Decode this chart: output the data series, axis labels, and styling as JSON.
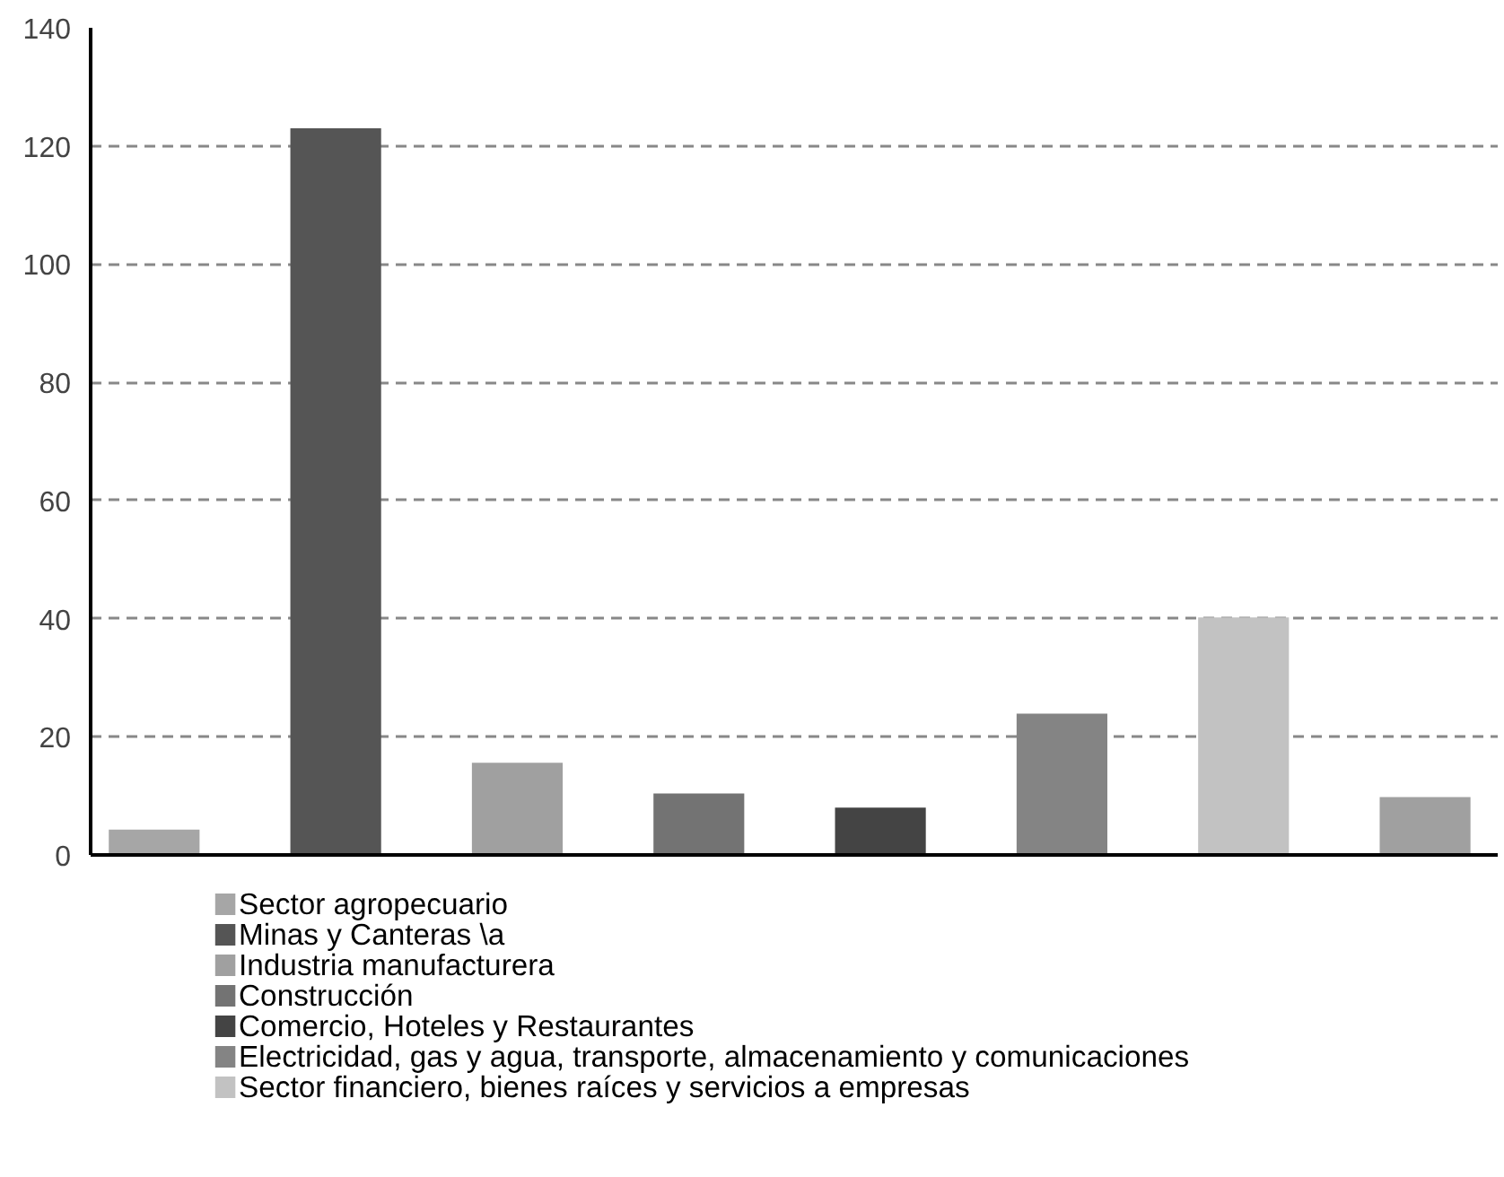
{
  "chart_data": {
    "type": "bar",
    "categories": [
      null,
      null,
      null,
      null,
      null,
      null,
      null,
      null
    ],
    "series": [
      {
        "name": "Sector agropecuario",
        "color": "#a6a6a6",
        "values": [
          4.3,
          null,
          null,
          null,
          null,
          null,
          null,
          null
        ]
      },
      {
        "name": "Minas y Canteras \\a",
        "color": "#555555",
        "values": [
          null,
          123,
          null,
          null,
          null,
          null,
          null,
          null
        ]
      },
      {
        "name": "Industria manufacturera",
        "color": "#a0a0a0",
        "values": [
          null,
          null,
          15.6,
          null,
          null,
          null,
          null,
          null
        ]
      },
      {
        "name": "Construcción",
        "color": "#737373",
        "values": [
          null,
          null,
          null,
          10.4,
          null,
          null,
          null,
          null
        ]
      },
      {
        "name": "Comercio, Hoteles y Restaurantes",
        "color": "#444444",
        "values": [
          null,
          null,
          null,
          null,
          8,
          null,
          null,
          null
        ]
      },
      {
        "name": "Electricidad, gas y agua, transporte, almacenamiento y comunicaciones",
        "color": "#848484",
        "values": [
          null,
          null,
          null,
          null,
          null,
          23.9,
          null,
          null
        ]
      },
      {
        "name": "Sector financiero, bienes raíces y servicios a empresas",
        "color": "#c2c2c2",
        "values": [
          null,
          null,
          null,
          null,
          null,
          null,
          40.2,
          null
        ]
      },
      {
        "color": "#a0a0a0",
        "values": [
          null,
          null,
          null,
          null,
          null,
          null,
          null,
          9.8
        ]
      }
    ],
    "ylim": [
      0,
      140
    ],
    "yticks": [
      0,
      20,
      40,
      60,
      80,
      100,
      120,
      140
    ],
    "grid": "y",
    "legend": "bottom"
  }
}
